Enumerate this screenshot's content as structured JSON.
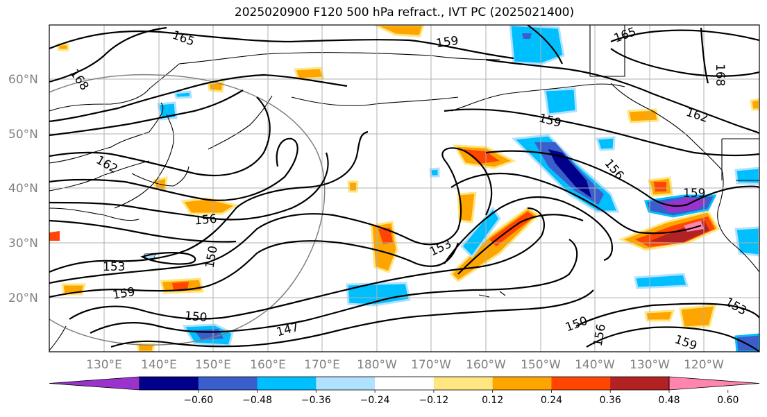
{
  "title": "2025020900 F120 500 hPa refract., IVT PC (2025021400)",
  "lat_labels": [
    "60°N",
    "50°N",
    "40°N",
    "30°N",
    "20°N"
  ],
  "lon_labels": [
    "130°E",
    "140°E",
    "150°E",
    "160°E",
    "170°E",
    "180°W",
    "170°W",
    "160°W",
    "150°W",
    "140°W",
    "130°W",
    "120°W"
  ],
  "contour_labels": [
    "165",
    "159",
    "168",
    "162",
    "159",
    "162",
    "156",
    "156",
    "153",
    "150",
    "159",
    "153",
    "150",
    "147",
    "159",
    "165",
    "168",
    "150",
    "156",
    "153",
    "159"
  ],
  "colorbar": {
    "ticks": [
      "−0.60",
      "−0.48",
      "−0.36",
      "−0.24",
      "−0.12",
      "0.12",
      "0.24",
      "0.36",
      "0.48",
      "0.60"
    ],
    "colors": [
      "#9933cc",
      "#00008b",
      "#3a5fcd",
      "#00bfff",
      "#b0e2ff",
      "#ffffff",
      "#ffe680",
      "#ffa500",
      "#ff4500",
      "#b22222",
      "#ff85b0"
    ]
  }
}
